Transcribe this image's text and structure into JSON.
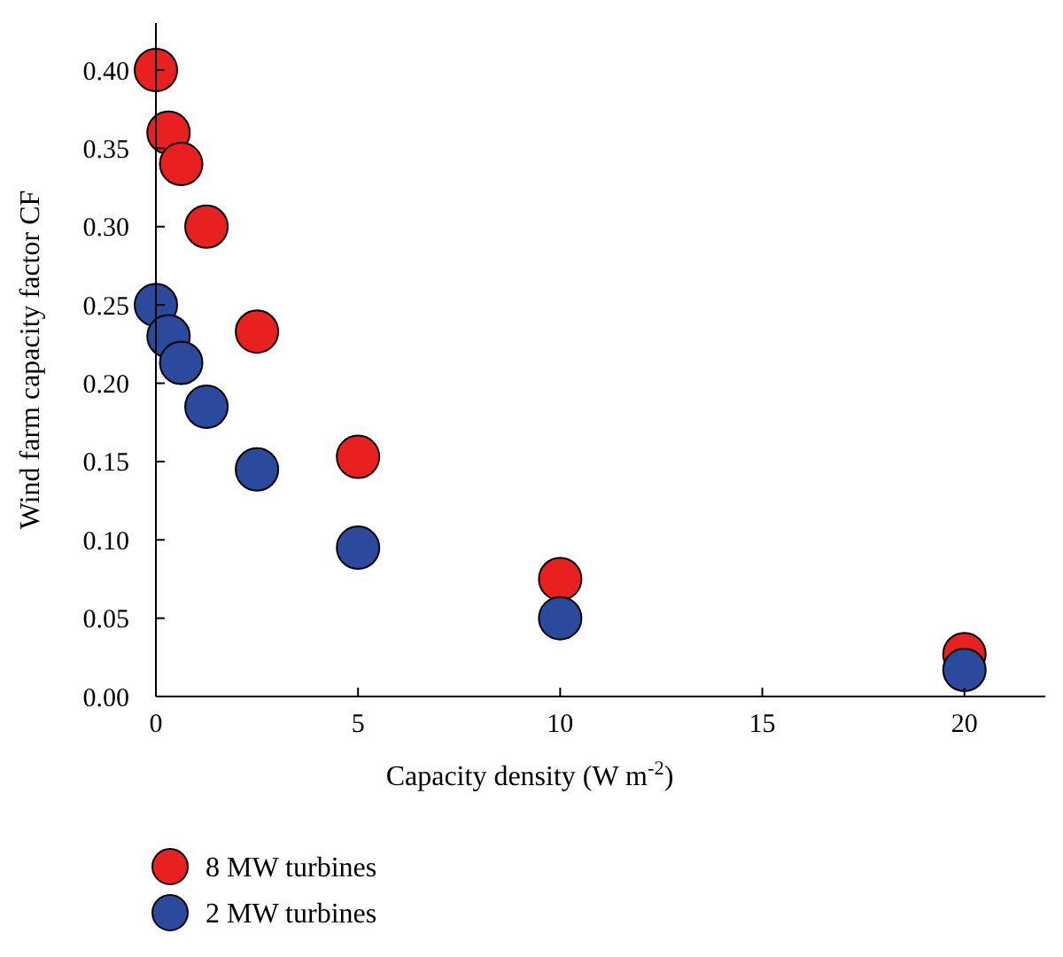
{
  "chart_data": {
    "type": "scatter",
    "xlabel": "Capacity density (W m$^{-2}$)",
    "ylabel": "Wind farm capacity factor CF",
    "series": [
      {
        "name": "8 MW turbines",
        "color": "#e8201f",
        "x": [
          0,
          0.3125,
          0.625,
          1.25,
          2.5,
          5,
          10,
          20
        ],
        "values": [
          0.4,
          0.36,
          0.34,
          0.3,
          0.233,
          0.153,
          0.075,
          0.027
        ]
      },
      {
        "name": "2 MW turbines",
        "color": "#2b4a9e",
        "x": [
          0,
          0.3125,
          0.625,
          1.25,
          2.5,
          5,
          10,
          20
        ],
        "values": [
          0.25,
          0.23,
          0.213,
          0.185,
          0.145,
          0.095,
          0.05,
          0.017
        ]
      }
    ],
    "xlim": [
      0,
      22
    ],
    "xticks": [
      0,
      5,
      10,
      15,
      20
    ],
    "ylim": [
      0,
      0.43
    ],
    "yticks": [
      {
        "value": 0,
        "label": "0.00"
      },
      {
        "value": 0.05,
        "label": "0.05"
      },
      {
        "value": 0.1,
        "label": "0.10"
      },
      {
        "value": 0.15,
        "label": "0.15"
      },
      {
        "value": 0.2,
        "label": "0.20"
      },
      {
        "value": 0.25,
        "label": "0.25"
      },
      {
        "value": 0.3,
        "label": "0.30"
      },
      {
        "value": 0.35,
        "label": "0.35"
      },
      {
        "value": 0.4,
        "label": "0.40"
      }
    ],
    "marker": "circle",
    "legend": "bottom left",
    "grid": false
  }
}
